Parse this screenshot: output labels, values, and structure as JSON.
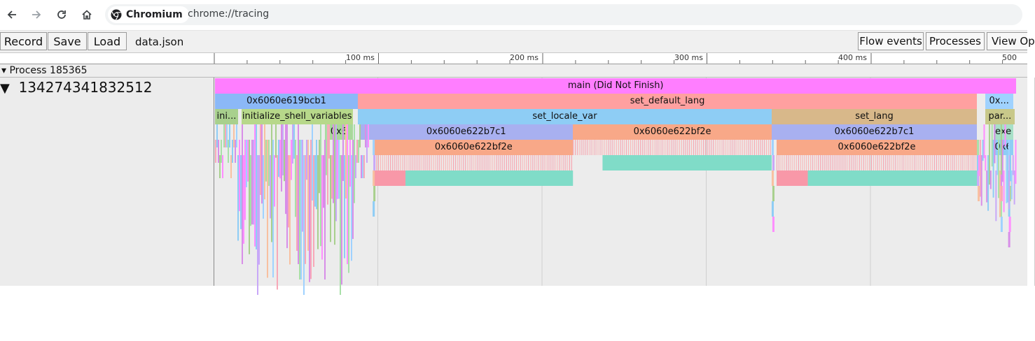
{
  "browser": {
    "site_chip": "Chromium",
    "url": "chrome://tracing",
    "icons": [
      "back-arrow-icon",
      "forward-arrow-icon",
      "reload-icon",
      "home-icon",
      "chromium-logo-icon"
    ]
  },
  "toolbar": {
    "record": "Record",
    "save": "Save",
    "load": "Load",
    "filename": "data.json",
    "flow_events": "Flow events",
    "processes": "Processes",
    "view_options": "View Op"
  },
  "ruler": {
    "ticks": [
      "100 ms",
      "200 ms",
      "300 ms",
      "400 ms",
      "500 ms"
    ]
  },
  "process": {
    "label": "Process 185365",
    "collapse_glyph": "▾"
  },
  "thread": {
    "label": "134274341832512",
    "collapse_glyph": "▼",
    "slices": [
      {
        "name": "main (Did Not Finish)",
        "start": 0,
        "end": 488,
        "depth": 0,
        "color": "#ff7eff"
      },
      {
        "name": "0x6060e619bcb1",
        "start": 0,
        "end": 87,
        "depth": 1,
        "color": "#8bb8f7"
      },
      {
        "name": "set_default_lang",
        "start": 87,
        "end": 464,
        "depth": 1,
        "color": "#ffa0a0"
      },
      {
        "name": "0x...",
        "start": 469,
        "end": 486,
        "depth": 1,
        "color": "#9fd2ff"
      },
      {
        "name": "ini...",
        "start": 0,
        "end": 14,
        "depth": 2,
        "color": "#a8d08d"
      },
      {
        "name": "initialize_shell_variables",
        "start": 16,
        "end": 84,
        "depth": 2,
        "color": "#b7d88a"
      },
      {
        "name": "set_locale_var",
        "start": 87,
        "end": 339,
        "depth": 2,
        "color": "#8ecdf5"
      },
      {
        "name": "set_lang",
        "start": 339,
        "end": 464,
        "depth": 2,
        "color": "#d8b88a"
      },
      {
        "name": "par...",
        "start": 469,
        "end": 487,
        "depth": 2,
        "color": "#c8c88a"
      },
      {
        "name": "0x6",
        "start": 67,
        "end": 84,
        "depth": 3,
        "color": "#a8d89a"
      },
      {
        "name": "0x6060e622b7c1",
        "start": 88,
        "end": 218,
        "depth": 3,
        "color": "#a8b0f0"
      },
      {
        "name": "0x6060e622bf2e",
        "start": 218,
        "end": 339,
        "depth": 3,
        "color": "#f8a888"
      },
      {
        "name": "0x6060e622b7c1",
        "start": 339,
        "end": 464,
        "depth": 3,
        "color": "#a8b0f0"
      },
      {
        "name": "exe",
        "start": 474,
        "end": 486,
        "depth": 3,
        "color": "#a8e0c8"
      },
      {
        "name": "0x6060e622bf2e",
        "start": 97,
        "end": 218,
        "depth": 4,
        "color": "#f8a888"
      },
      {
        "name": "0x6060e622bf2e",
        "start": 342,
        "end": 464,
        "depth": 4,
        "color": "#f8a888"
      },
      {
        "name": "0x6",
        "start": 474,
        "end": 486,
        "depth": 4,
        "color": "#8ecdf5"
      }
    ]
  },
  "colors": {
    "main": "#ff7eff",
    "teal_slice": "#80dcc8",
    "grid": "#d0d0d0"
  }
}
